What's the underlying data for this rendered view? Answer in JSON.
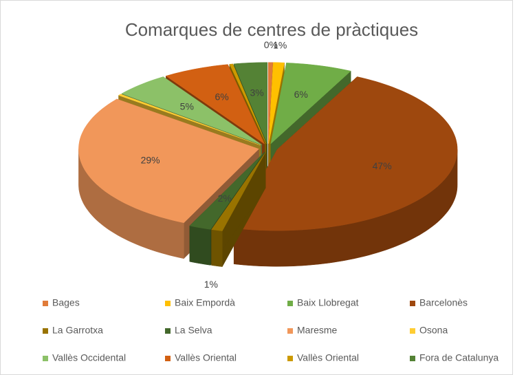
{
  "chart_data": {
    "type": "pie3d",
    "title": "Comarques de centres de pràctiques",
    "categories": [
      "Bages",
      "Baix Empordà",
      "Baix Llobregat",
      "Barcelonès",
      "La Garrotxa",
      "La Selva",
      "Maresme",
      "Osona",
      "Vallès Occidental",
      "Vallès Oriental",
      "Vallès Oriental",
      "Fora de Catalunya"
    ],
    "values": [
      0.4,
      1,
      6,
      47,
      1,
      2,
      29,
      0.3,
      5,
      6,
      0.3,
      3
    ],
    "value_labels": [
      "0%",
      "1%",
      "6%",
      "47%",
      "1%",
      "2%",
      "29%",
      null,
      "5%",
      "6%",
      null,
      "3%"
    ],
    "colors": [
      "#e07b39",
      "#ffc000",
      "#70ad47",
      "#9e480e",
      "#997300",
      "#43682b",
      "#f1975a",
      "#ffcd33",
      "#8cc168",
      "#d26012",
      "#cc9a00",
      "#548235"
    ],
    "legend": "bottom"
  }
}
